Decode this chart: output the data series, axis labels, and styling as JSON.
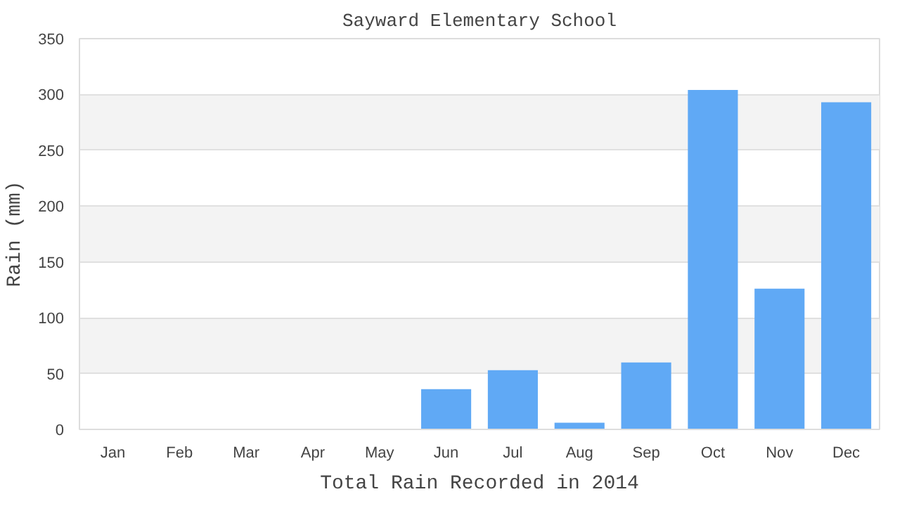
{
  "chart_data": {
    "type": "bar",
    "title": "Sayward Elementary School",
    "xlabel": "Total Rain Recorded in 2014",
    "ylabel": "Rain (mm)",
    "categories": [
      "Jan",
      "Feb",
      "Mar",
      "Apr",
      "May",
      "Jun",
      "Jul",
      "Aug",
      "Sep",
      "Oct",
      "Nov",
      "Dec"
    ],
    "values": [
      0,
      0,
      0,
      0,
      0,
      36,
      53,
      6,
      60,
      304,
      126,
      293
    ],
    "color": "#60a9f5",
    "ylim": [
      0,
      350
    ],
    "yticks": [
      0,
      50,
      100,
      150,
      200,
      250,
      300,
      350
    ],
    "grid": "y"
  }
}
